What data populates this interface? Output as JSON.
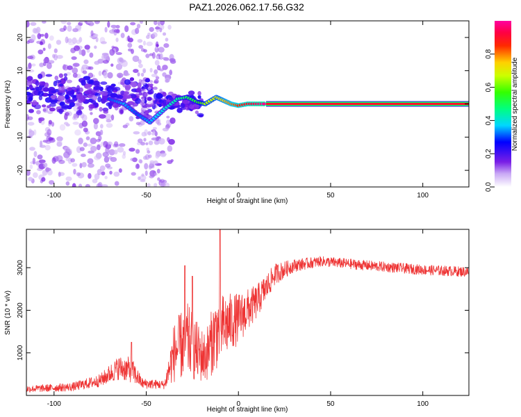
{
  "title": "PAZ1.2026.062.17.56.G32",
  "chart_data": [
    {
      "type": "heatmap",
      "name": "spectrogram",
      "xlabel": "Height of straight line (km)",
      "ylabel": "Frequency (Hz)",
      "xlim": [
        -115,
        125
      ],
      "ylim": [
        -25,
        25
      ],
      "xticks": [
        -100,
        -50,
        0,
        50,
        100
      ],
      "xtick_labels": [
        "-100",
        "-50",
        "0",
        "50",
        "100"
      ],
      "yticks": [
        -20,
        -10,
        0,
        10,
        20
      ],
      "ytick_labels": [
        "-20",
        "-10",
        "0",
        "10",
        "20"
      ],
      "colorbar": {
        "label": "Normalized spectral amplitude",
        "range": [
          0,
          1
        ],
        "ticks": [
          0.0,
          0.2,
          0.4,
          0.6,
          0.8
        ],
        "tick_labels": [
          "0.0",
          "0.2",
          "0.4",
          "0.6",
          "0.8"
        ],
        "colormap": "rainbow-white-to-magenta"
      },
      "ridge": [
        {
          "x": -70,
          "f": 1.5,
          "amp": 0.3
        },
        {
          "x": -62,
          "f": 0,
          "amp": 0.35
        },
        {
          "x": -55,
          "f": -3,
          "amp": 0.3
        },
        {
          "x": -48,
          "f": -5.5,
          "amp": 0.35
        },
        {
          "x": -40,
          "f": -1.5,
          "amp": 0.4
        },
        {
          "x": -33,
          "f": 1.5,
          "amp": 0.45
        },
        {
          "x": -28,
          "f": 2,
          "amp": 0.5
        },
        {
          "x": -22,
          "f": 0.5,
          "amp": 0.55
        },
        {
          "x": -18,
          "f": 0,
          "amp": 0.65
        },
        {
          "x": -12,
          "f": 2,
          "amp": 0.7
        },
        {
          "x": -8,
          "f": 1,
          "amp": 0.75
        },
        {
          "x": -4,
          "f": 0,
          "amp": 0.8
        },
        {
          "x": 0,
          "f": -0.5,
          "amp": 0.85
        },
        {
          "x": 5,
          "f": 0,
          "amp": 0.9
        },
        {
          "x": 10,
          "f": 0,
          "amp": 0.95
        },
        {
          "x": 15,
          "f": 0,
          "amp": 1.0
        },
        {
          "x": 125,
          "f": 0,
          "amp": 1.0
        }
      ]
    },
    {
      "type": "line",
      "name": "snr",
      "xlabel": "Height of straight line (km)",
      "ylabel": "SNR (10 * v/v)",
      "xlim": [
        -115,
        125
      ],
      "ylim": [
        0,
        3900
      ],
      "xticks": [
        -100,
        -50,
        0,
        50,
        100
      ],
      "xtick_labels": [
        "-100",
        "-50",
        "0",
        "50",
        "100"
      ],
      "yticks": [
        1000,
        2000,
        3000
      ],
      "ytick_labels": [
        "1000",
        "2000",
        "3000"
      ],
      "color": "#ee3333",
      "envelope": [
        {
          "x": -115,
          "mean": 150,
          "spread": 80
        },
        {
          "x": -90,
          "mean": 200,
          "spread": 100
        },
        {
          "x": -75,
          "mean": 350,
          "spread": 150
        },
        {
          "x": -65,
          "mean": 650,
          "spread": 280
        },
        {
          "x": -58,
          "mean": 600,
          "spread": 300
        },
        {
          "x": -52,
          "mean": 280,
          "spread": 120
        },
        {
          "x": -40,
          "mean": 250,
          "spread": 100
        },
        {
          "x": -35,
          "mean": 1000,
          "spread": 700
        },
        {
          "x": -28,
          "mean": 1300,
          "spread": 900
        },
        {
          "x": -22,
          "mean": 1000,
          "spread": 700
        },
        {
          "x": -18,
          "mean": 900,
          "spread": 600
        },
        {
          "x": -12,
          "mean": 1500,
          "spread": 900
        },
        {
          "x": -5,
          "mean": 1700,
          "spread": 700
        },
        {
          "x": 0,
          "mean": 1800,
          "spread": 600
        },
        {
          "x": 10,
          "mean": 2200,
          "spread": 400
        },
        {
          "x": 20,
          "mean": 2850,
          "spread": 250
        },
        {
          "x": 30,
          "mean": 3050,
          "spread": 150
        },
        {
          "x": 45,
          "mean": 3150,
          "spread": 120
        },
        {
          "x": 70,
          "mean": 3050,
          "spread": 120
        },
        {
          "x": 100,
          "mean": 2950,
          "spread": 120
        },
        {
          "x": 125,
          "mean": 2900,
          "spread": 120
        }
      ],
      "peaks": [
        {
          "x": -10,
          "y": 3900
        },
        {
          "x": -29,
          "y": 3050
        },
        {
          "x": -25,
          "y": 2800
        },
        {
          "x": -58,
          "y": 1250
        }
      ]
    }
  ]
}
